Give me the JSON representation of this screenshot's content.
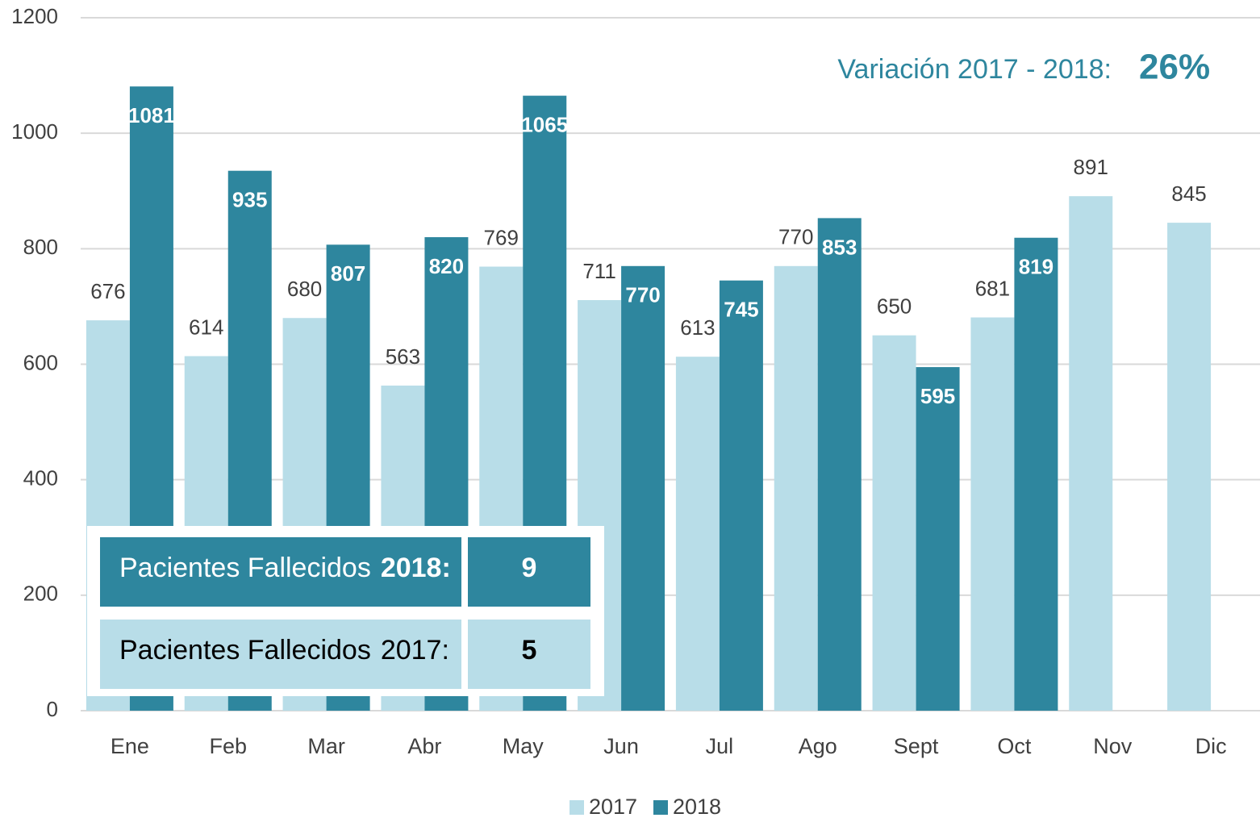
{
  "chart_data": {
    "type": "bar",
    "categories": [
      "Ene",
      "Feb",
      "Mar",
      "Abr",
      "May",
      "Jun",
      "Jul",
      "Ago",
      "Sept",
      "Oct",
      "Nov",
      "Dic"
    ],
    "series": [
      {
        "name": "2017",
        "color": "#b8dde8",
        "values": [
          676,
          614,
          680,
          563,
          769,
          711,
          613,
          770,
          650,
          681,
          891,
          845
        ]
      },
      {
        "name": "2018",
        "color": "#2e869e",
        "values": [
          1081,
          935,
          807,
          820,
          1065,
          770,
          745,
          853,
          595,
          819,
          null,
          null
        ]
      }
    ],
    "ylim": [
      0,
      1200
    ],
    "yticks": [
      0,
      200,
      400,
      600,
      800,
      1000,
      1200
    ],
    "grid": true,
    "legend": "bottom",
    "annotations": {
      "variation_label": "Variación 2017 - 2018:",
      "variation_value": "26%"
    },
    "table": {
      "rows": [
        {
          "label": "Pacientes Fallecidos",
          "year": "2018:",
          "value": "9"
        },
        {
          "label": "Pacientes Fallecidos",
          "year": "2017:",
          "value": "5"
        }
      ]
    }
  }
}
